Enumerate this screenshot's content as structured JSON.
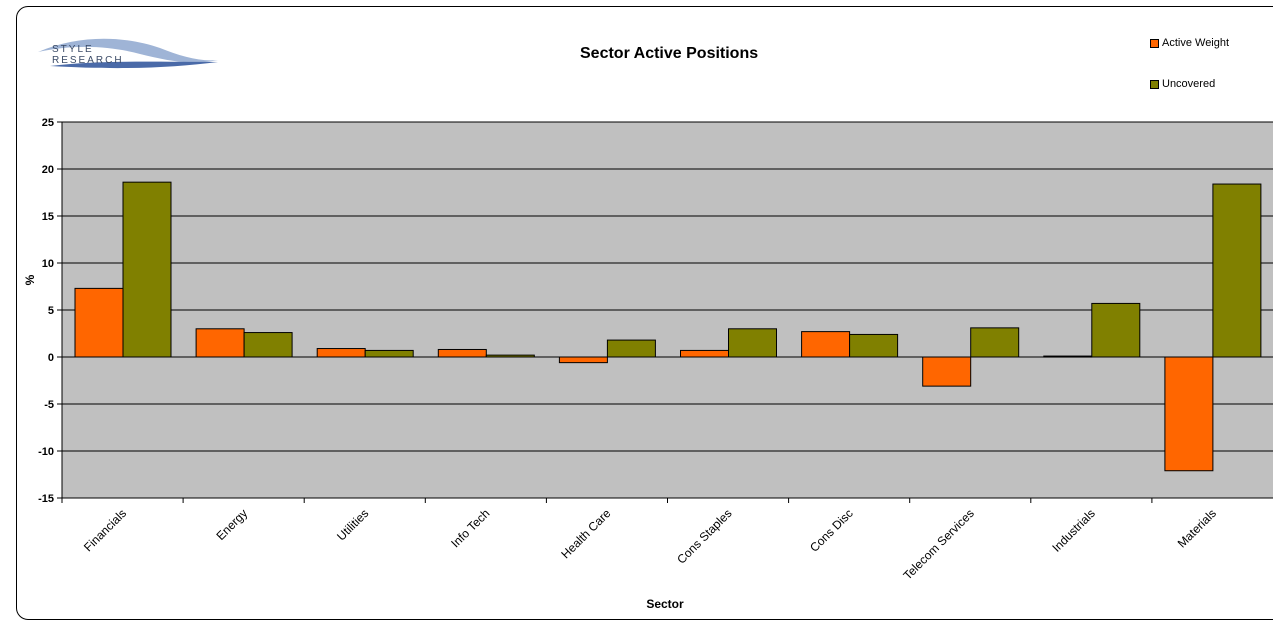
{
  "logo": {
    "line1": "STYLE",
    "line2": "RESEARCH"
  },
  "colors": {
    "active_weight": "#FF6600",
    "uncovered": "#808000",
    "plot_bg": "#C0C0C0"
  },
  "chart_data": {
    "type": "bar",
    "title": "Sector Active Positions",
    "xlabel": "Sector",
    "ylabel": "%",
    "ylim": [
      -15,
      25
    ],
    "yticks": [
      25,
      20,
      15,
      10,
      5,
      0,
      -5,
      -10,
      -15
    ],
    "grid": true,
    "legend_position": "top-right",
    "categories": [
      "Financials",
      "Energy",
      "Utilities",
      "Info Tech",
      "Health Care",
      "Cons Staples",
      "Cons Disc",
      "Telecom Services",
      "Industrials",
      "Materials"
    ],
    "series": [
      {
        "name": "Active Weight",
        "values": [
          7.3,
          3.0,
          0.9,
          0.8,
          -0.6,
          0.7,
          2.7,
          -3.1,
          0.1,
          -12.1
        ]
      },
      {
        "name": "Uncovered",
        "values": [
          18.6,
          2.6,
          0.7,
          0.2,
          1.8,
          3.0,
          2.4,
          3.1,
          5.7,
          18.4
        ]
      }
    ]
  }
}
